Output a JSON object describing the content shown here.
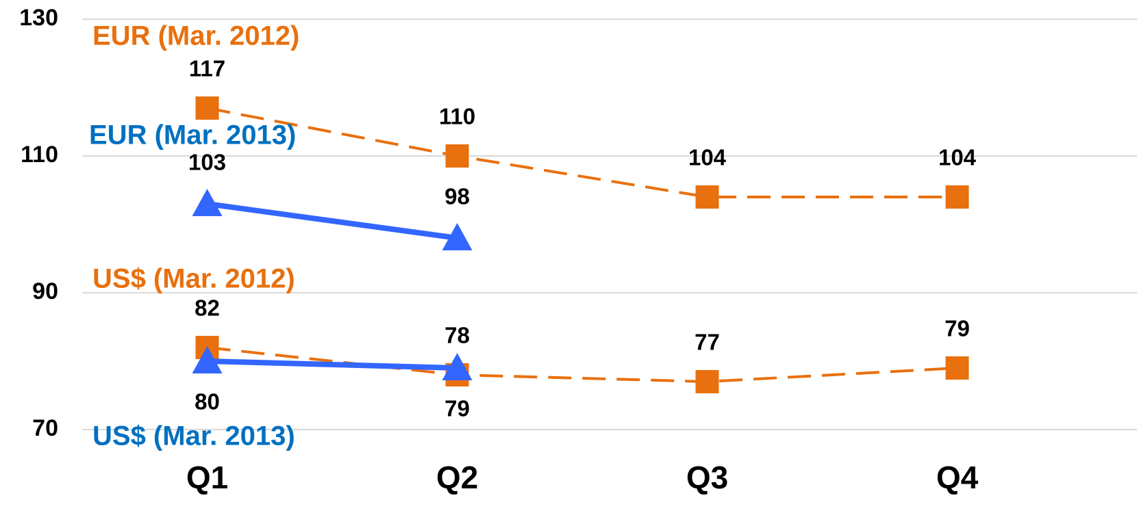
{
  "chart_data": {
    "type": "line",
    "categories": [
      "Q1",
      "Q2",
      "Q3",
      "Q4"
    ],
    "series": [
      {
        "name": "EUR (Mar. 2012)",
        "color": "#e8700e",
        "values": [
          117,
          110,
          104,
          104
        ]
      },
      {
        "name": "EUR (Mar. 2013)",
        "color": "#3366ff",
        "values": [
          103,
          98,
          null,
          null
        ]
      },
      {
        "name": "US$ (Mar. 2012)",
        "color": "#e8700e",
        "values": [
          82,
          78,
          77,
          79
        ]
      },
      {
        "name": "US$ (Mar. 2013)",
        "color": "#3366ff",
        "values": [
          80,
          79,
          null,
          null
        ]
      }
    ],
    "ylim": [
      70,
      130
    ],
    "yticks": [
      70,
      90,
      110,
      130
    ],
    "grid": true
  }
}
